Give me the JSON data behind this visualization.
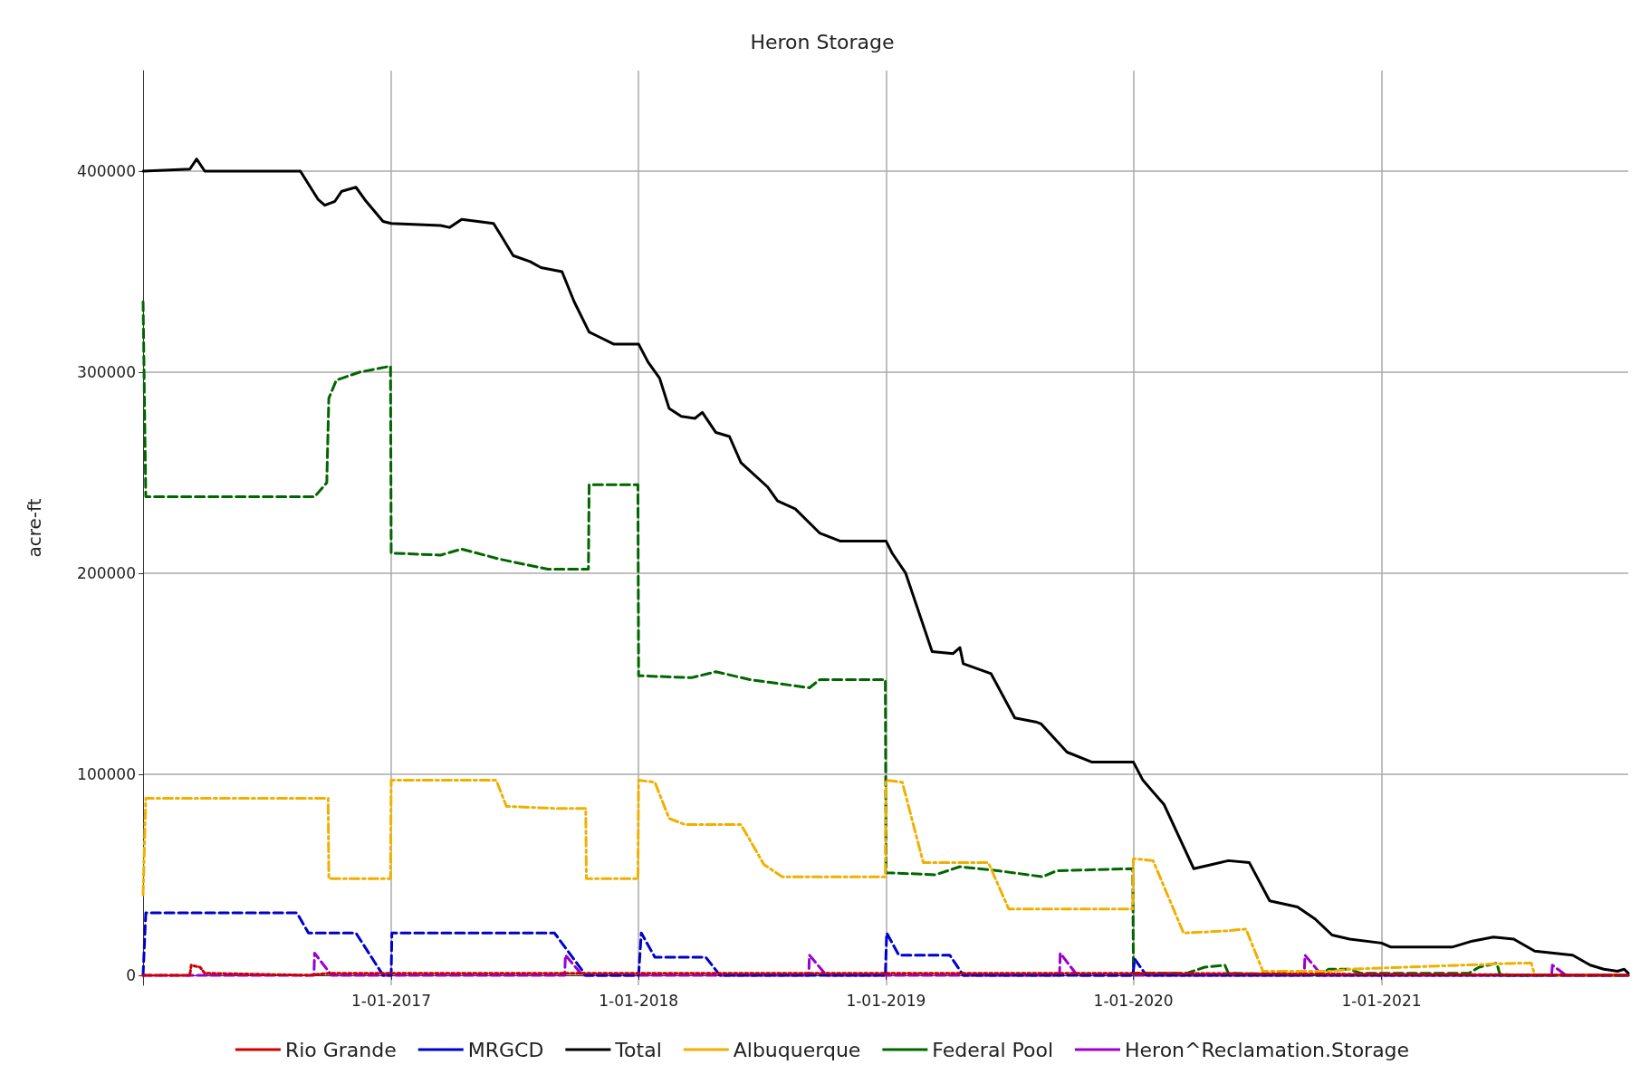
{
  "chart_data": {
    "type": "line",
    "title": "Heron Storage",
    "ylabel": "acre-ft",
    "xlim": [
      "2016-01-01",
      "2021-12-31"
    ],
    "xticks": [
      {
        "value": "2017-01-01",
        "label": "1-01-2017"
      },
      {
        "value": "2018-01-01",
        "label": "1-01-2018"
      },
      {
        "value": "2019-01-01",
        "label": "1-01-2019"
      },
      {
        "value": "2020-01-01",
        "label": "1-01-2020"
      },
      {
        "value": "2021-01-01",
        "label": "1-01-2021"
      }
    ],
    "ylim": [
      -5000,
      450000
    ],
    "yticks": [
      0,
      100000,
      200000,
      300000,
      400000
    ],
    "grid": true,
    "legend": "bottom",
    "marker": "none",
    "series": [
      {
        "name": "Rio Grande",
        "color": "#cc0000",
        "line_style": "dotted",
        "x": [
          "2016-01-01",
          "2016-03-10",
          "2016-03-12",
          "2016-03-25",
          "2016-04-01",
          "2016-09-01",
          "2016-10-01",
          "2017-01-01",
          "2017-10-01",
          "2018-01-01",
          "2018-06-01",
          "2019-01-01",
          "2019-10-01",
          "2020-01-01",
          "2021-12-31"
        ],
        "values": [
          0,
          0,
          5000,
          4000,
          1000,
          0,
          1000,
          1000,
          1000,
          1000,
          1000,
          1000,
          1000,
          1000,
          0
        ]
      },
      {
        "name": "MRGCD",
        "color": "#0000cc",
        "line_style": "dashed",
        "x": [
          "2016-01-01",
          "2016-01-05",
          "2016-08-15",
          "2016-09-01",
          "2016-11-10",
          "2016-12-20",
          "2017-01-01",
          "2017-01-02",
          "2017-08-30",
          "2017-10-15",
          "2018-01-01",
          "2018-01-05",
          "2018-01-25",
          "2018-04-10",
          "2018-05-01",
          "2018-12-31",
          "2019-01-02",
          "2019-01-20",
          "2019-04-05",
          "2019-04-25",
          "2019-12-31",
          "2020-01-03",
          "2020-01-20",
          "2021-12-31"
        ],
        "values": [
          0,
          31000,
          31000,
          21000,
          21000,
          0,
          0,
          21000,
          21000,
          0,
          0,
          21000,
          9000,
          9000,
          0,
          0,
          21000,
          10000,
          10000,
          0,
          0,
          8000,
          0,
          0
        ]
      },
      {
        "name": "Total",
        "color": "#000000",
        "line_style": "solid",
        "x": [
          "2016-01-01",
          "2016-03-10",
          "2016-03-20",
          "2016-04-01",
          "2016-08-20",
          "2016-09-15",
          "2016-09-25",
          "2016-10-10",
          "2016-10-20",
          "2016-11-10",
          "2016-11-25",
          "2016-12-20",
          "2017-01-01",
          "2017-03-15",
          "2017-03-28",
          "2017-04-15",
          "2017-06-01",
          "2017-06-12",
          "2017-06-30",
          "2017-07-25",
          "2017-08-10",
          "2017-09-10",
          "2017-09-28",
          "2017-10-20",
          "2017-11-01",
          "2017-11-25",
          "2018-01-01",
          "2018-01-15",
          "2018-02-01",
          "2018-02-15",
          "2018-03-05",
          "2018-03-25",
          "2018-04-05",
          "2018-04-25",
          "2018-05-15",
          "2018-06-01",
          "2018-07-10",
          "2018-07-25",
          "2018-08-20",
          "2018-09-25",
          "2018-10-25",
          "2019-01-01",
          "2019-01-10",
          "2019-01-30",
          "2019-03-10",
          "2019-04-10",
          "2019-04-20",
          "2019-04-25",
          "2019-06-05",
          "2019-07-10",
          "2019-08-10",
          "2019-08-18",
          "2019-09-25",
          "2019-11-01",
          "2020-01-01",
          "2020-01-15",
          "2020-02-15",
          "2020-03-30",
          "2020-04-25",
          "2020-05-20",
          "2020-06-20",
          "2020-07-20",
          "2020-08-30",
          "2020-09-25",
          "2020-10-20",
          "2020-11-15",
          "2021-01-01",
          "2021-01-15",
          "2021-04-15",
          "2021-05-15",
          "2021-06-15",
          "2021-07-15",
          "2021-08-15",
          "2021-10-10",
          "2021-11-05",
          "2021-11-25",
          "2021-12-15",
          "2021-12-25",
          "2021-12-31"
        ],
        "values": [
          400000,
          401000,
          406000,
          400000,
          400000,
          386000,
          383000,
          385000,
          390000,
          392000,
          385000,
          375000,
          374000,
          373000,
          372000,
          376000,
          374000,
          368000,
          358000,
          355000,
          352000,
          350000,
          335000,
          320000,
          318000,
          314000,
          314000,
          305000,
          297000,
          282000,
          278000,
          277000,
          280000,
          270000,
          268000,
          255000,
          243000,
          236000,
          232000,
          220000,
          216000,
          216000,
          210000,
          200000,
          161000,
          160000,
          163000,
          155000,
          150000,
          128000,
          126000,
          125000,
          111000,
          106000,
          106000,
          97000,
          85000,
          53000,
          55000,
          57000,
          56000,
          37000,
          34000,
          28000,
          20000,
          18000,
          16000,
          14000,
          14000,
          17000,
          19000,
          18000,
          12000,
          10000,
          5000,
          3000,
          2000,
          3000,
          1000
        ]
      },
      {
        "name": "Albuquerque",
        "color": "#f0b000",
        "line_style": "dashed",
        "x": [
          "2016-01-01",
          "2016-01-05",
          "2016-09-30",
          "2016-10-01",
          "2016-12-31",
          "2017-01-01",
          "2017-06-05",
          "2017-06-20",
          "2017-08-30",
          "2017-10-15",
          "2017-10-16",
          "2017-12-31",
          "2018-01-01",
          "2018-01-25",
          "2018-02-15",
          "2018-03-10",
          "2018-06-01",
          "2018-07-05",
          "2018-08-01",
          "2018-12-31",
          "2019-01-01",
          "2019-01-25",
          "2019-02-25",
          "2019-06-01",
          "2019-07-01",
          "2019-12-31",
          "2020-01-01",
          "2020-01-30",
          "2020-03-15",
          "2020-05-15",
          "2020-06-15",
          "2020-07-10",
          "2020-10-20",
          "2020-11-15",
          "2021-07-20",
          "2021-08-10",
          "2021-08-15",
          "2021-12-31"
        ],
        "values": [
          40000,
          88000,
          88000,
          48000,
          48000,
          97000,
          97000,
          84000,
          83000,
          83000,
          48000,
          48000,
          97000,
          96000,
          78000,
          75000,
          75000,
          55000,
          49000,
          49000,
          97000,
          96000,
          56000,
          56000,
          33000,
          33000,
          58000,
          57000,
          21000,
          22000,
          23000,
          2000,
          2000,
          3000,
          6000,
          6000,
          0,
          0
        ]
      },
      {
        "name": "Federal Pool",
        "color": "#006600",
        "line_style": "dashed",
        "x": [
          "2016-01-01",
          "2016-01-05",
          "2016-09-10",
          "2016-09-28",
          "2016-10-01",
          "2016-10-12",
          "2016-11-15",
          "2016-12-31",
          "2017-01-01",
          "2017-03-15",
          "2017-04-15",
          "2017-06-10",
          "2017-08-20",
          "2017-10-19",
          "2017-10-20",
          "2017-12-31",
          "2018-01-01",
          "2018-03-20",
          "2018-04-25",
          "2018-06-15",
          "2018-09-10",
          "2018-09-25",
          "2018-12-31",
          "2019-01-01",
          "2019-03-15",
          "2019-04-20",
          "2019-06-15",
          "2019-08-20",
          "2019-09-10",
          "2019-12-31",
          "2020-01-01",
          "2020-03-20",
          "2020-04-15",
          "2020-05-15",
          "2020-05-20",
          "2020-10-01",
          "2020-10-15",
          "2020-11-15",
          "2020-12-01",
          "2021-05-10",
          "2021-05-25",
          "2021-06-20",
          "2021-06-25",
          "2021-12-31"
        ],
        "values": [
          335000,
          238000,
          238000,
          245000,
          287000,
          296000,
          300000,
          303000,
          210000,
          209000,
          212000,
          207000,
          202000,
          202000,
          244000,
          244000,
          149000,
          148000,
          151000,
          147000,
          143000,
          147000,
          147000,
          51000,
          50000,
          54000,
          52000,
          49000,
          52000,
          53000,
          1000,
          1000,
          4000,
          5000,
          1000,
          0,
          3000,
          3000,
          1000,
          1000,
          4000,
          6000,
          0,
          0
        ]
      },
      {
        "name": "Heron^Reclamation.Storage",
        "color": "#9900cc",
        "line_style": "dashed",
        "x": [
          "2016-01-01",
          "2016-09-09",
          "2016-09-10",
          "2016-10-05",
          "2017-09-14",
          "2017-09-15",
          "2017-10-10",
          "2018-09-09",
          "2018-09-10",
          "2018-10-05",
          "2019-09-14",
          "2019-09-15",
          "2019-10-10",
          "2020-09-09",
          "2020-09-10",
          "2020-10-05",
          "2021-09-09",
          "2021-09-10",
          "2021-09-30",
          "2021-12-31"
        ],
        "values": [
          0,
          0,
          11000,
          0,
          0,
          10000,
          0,
          0,
          10000,
          0,
          0,
          11000,
          0,
          0,
          10000,
          0,
          0,
          5000,
          0,
          0
        ]
      }
    ]
  }
}
